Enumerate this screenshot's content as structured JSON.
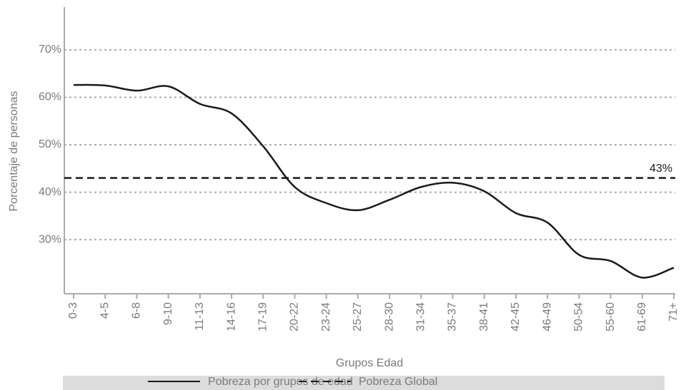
{
  "chart_data": {
    "type": "line",
    "x_label": "Grupos Edad",
    "y_label": "Porcentaje de personas",
    "categories": [
      "0-3",
      "4-5",
      "6-8",
      "9-10",
      "11-13",
      "14-16",
      "17-19",
      "20-22",
      "23-24",
      "25-27",
      "28-30",
      "31-34",
      "35-37",
      "38-41",
      "42-45",
      "46-49",
      "50-54",
      "55-60",
      "61-69",
      "71+"
    ],
    "series": [
      {
        "name": "Pobreza por grupos de edad",
        "color": "#1a1a1a",
        "style": "solid",
        "values": [
          62.6,
          62.5,
          61.4,
          62.3,
          58.6,
          56.6,
          49.7,
          41.1,
          37.7,
          36.2,
          38.4,
          41.1,
          42.0,
          40.2,
          35.6,
          33.6,
          26.8,
          25.5,
          22.0,
          24.1
        ]
      },
      {
        "name": "Pobreza Global",
        "color": "#1a1a1a",
        "style": "dashed",
        "value": 43,
        "value_label": "43%"
      }
    ],
    "ylim": [
      18.6,
      79
    ],
    "yticks": [
      {
        "value": 30,
        "label": "30%"
      },
      {
        "value": 40,
        "label": "40%"
      },
      {
        "value": 50,
        "label": "50%"
      },
      {
        "value": 60,
        "label": "60%"
      },
      {
        "value": 70,
        "label": "70%"
      }
    ],
    "grid": true,
    "smooth": true,
    "legend": "bottom"
  }
}
